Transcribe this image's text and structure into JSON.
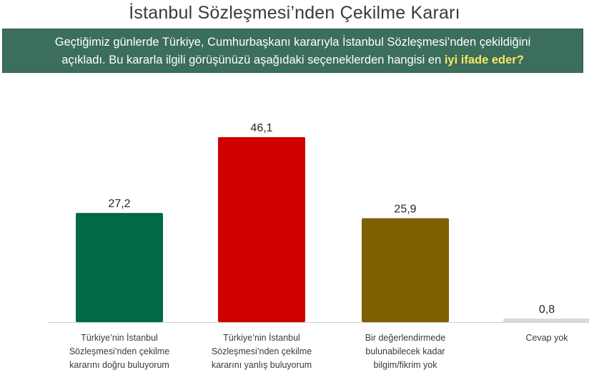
{
  "header": {
    "title": "İstanbul Sözleşmesi’nden Çekilme Kararı"
  },
  "question": {
    "line1": "Geçtiğimiz günlerde Türkiye, Cumhurbaşkanı kararıyla İstanbul Sözleşmesi’nden çekildiğini",
    "line2_prefix": "açıkladı. Bu kararla ilgili görüşünüzü aşağıdaki seçeneklerden hangisi en ",
    "line2_highlight": "iyi ifade eder?"
  },
  "chart_data": {
    "type": "bar",
    "categories": [
      [
        "Türkiye’nin İstanbul",
        "Sözleşmesi’nden çekilme",
        "kararını doğru buluyorum"
      ],
      [
        "Türkiye’nin İstanbul",
        "Sözleşmesi’nden çekilme",
        "kararını yanlış buluyorum"
      ],
      [
        "Bir değerlendirmede",
        "bulunabilecek kadar",
        "bilgim/fikrim yok"
      ],
      [
        "Cevap yok"
      ]
    ],
    "values": [
      27.2,
      46.1,
      25.9,
      0.8
    ],
    "data_labels": [
      "27,2",
      "46,1",
      "25,9",
      "0,8"
    ],
    "colors": [
      "#006a45",
      "#d10000",
      "#7f6000",
      "#d9d9d9"
    ],
    "ylim": [
      0,
      46.1
    ],
    "grid": false,
    "legend": "none"
  }
}
